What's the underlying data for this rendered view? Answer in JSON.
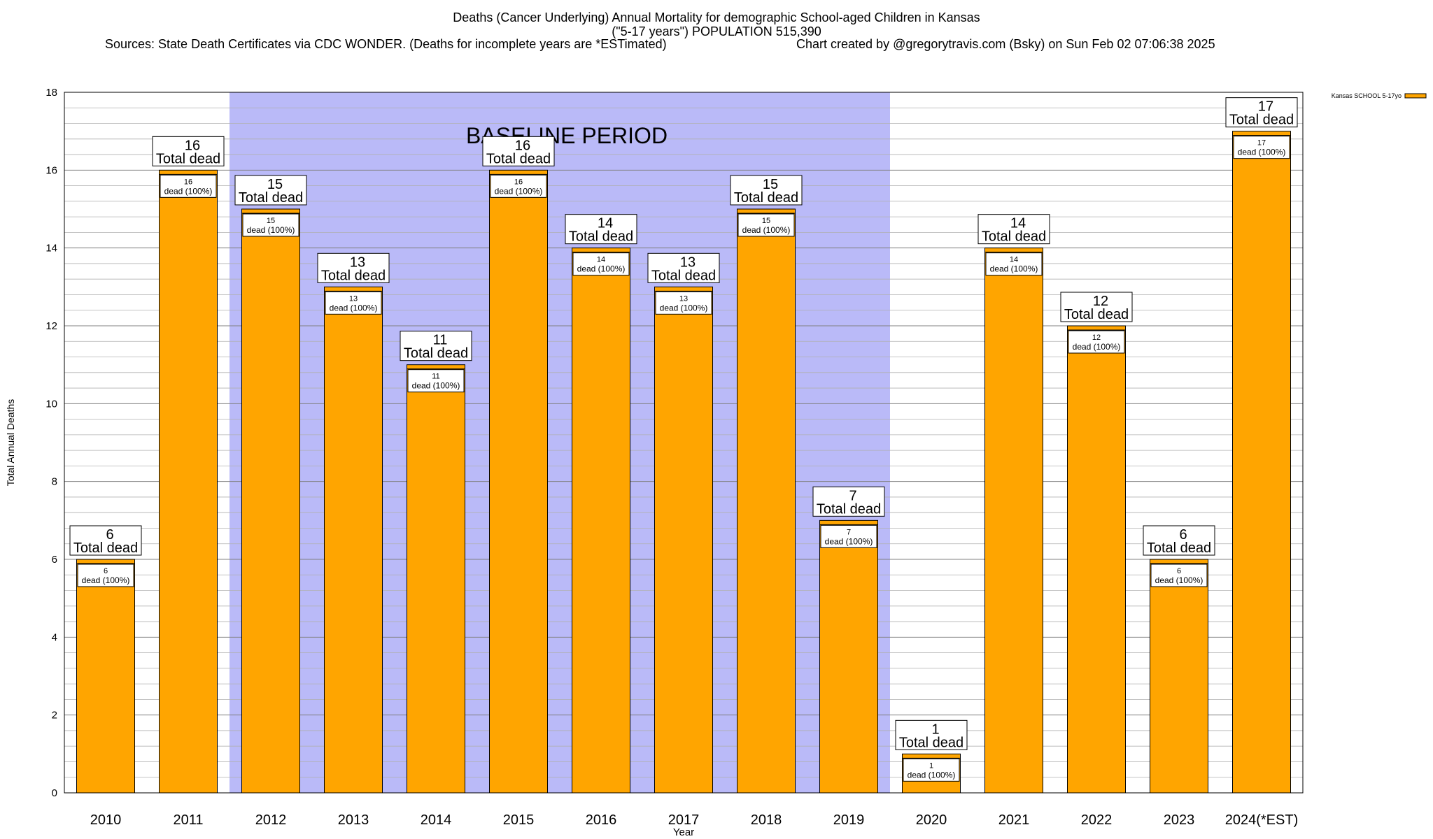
{
  "header": {
    "title_line1": "Deaths (Cancer Underlying) Annual Mortality for demographic School-aged Children in Kansas",
    "title_line2": "(\"5-17 years\") POPULATION 515,390",
    "sources": "Sources: State Death Certificates via CDC WONDER. (Deaths for incomplete years are *ESTimated)",
    "credit": "Chart created by @gregorytravis.com (Bsky) on Sun Feb 02 07:06:38 2025"
  },
  "colors": {
    "bar": "#ffa500",
    "baseline_band": "#babaf8",
    "grid": "#b0b0b0"
  },
  "chart_data": {
    "type": "bar",
    "title": "Deaths (Cancer Underlying) Annual Mortality for demographic School-aged Children in Kansas",
    "xlabel": "Year",
    "ylabel": "Total Annual Deaths",
    "ylim": [
      0,
      18
    ],
    "yticks": [
      0,
      2,
      4,
      6,
      8,
      10,
      12,
      14,
      16,
      18
    ],
    "grid": true,
    "legend_position": "top-right",
    "categories": [
      "2010",
      "2011",
      "2012",
      "2013",
      "2014",
      "2015",
      "2016",
      "2017",
      "2018",
      "2019",
      "2020",
      "2021",
      "2022",
      "2023",
      "2024(*EST)"
    ],
    "series": [
      {
        "name": "Kansas SCHOOL 5-17yo",
        "values": [
          6,
          16,
          15,
          13,
          11,
          16,
          14,
          13,
          15,
          7,
          1,
          14,
          12,
          6,
          17
        ]
      }
    ],
    "baseline_period": {
      "label": "BASELINE PERIOD",
      "from": "2012",
      "to": "2019"
    },
    "total_label_text": "Total dead",
    "inner_label_text": "dead (100%)"
  }
}
